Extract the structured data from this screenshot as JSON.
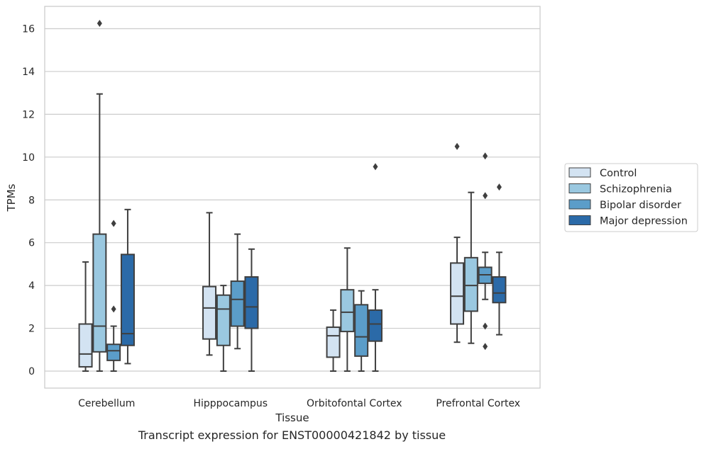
{
  "chart_data": {
    "type": "box",
    "caption": "Transcript expression for ENST00000421842 by tissue",
    "xlabel": "Tissue",
    "ylabel": "TPMs",
    "ylim": [
      -0.8,
      17
    ],
    "yticks": [
      0,
      2,
      4,
      6,
      8,
      10,
      12,
      14,
      16
    ],
    "grid": true,
    "legend_position": "right",
    "categories": [
      "Cerebellum",
      "Hipppocampus",
      "Orbitofontal Cortex",
      "Prefrontal Cortex"
    ],
    "series": [
      {
        "name": "Control",
        "color": "#d3e3f2",
        "boxes": [
          {
            "whislo": 0.0,
            "q1": 0.2,
            "med": 0.8,
            "q3": 2.2,
            "whishi": 5.1,
            "fliers": []
          },
          {
            "whislo": 0.75,
            "q1": 1.5,
            "med": 2.95,
            "q3": 3.95,
            "whishi": 7.4,
            "fliers": []
          },
          {
            "whislo": 0.0,
            "q1": 0.65,
            "med": 1.65,
            "q3": 2.05,
            "whishi": 2.85,
            "fliers": []
          },
          {
            "whislo": 1.35,
            "q1": 2.2,
            "med": 3.5,
            "q3": 5.05,
            "whishi": 6.25,
            "fliers": [
              10.5
            ]
          }
        ]
      },
      {
        "name": "Schizophrenia",
        "color": "#9ac8e0",
        "boxes": [
          {
            "whislo": 0.0,
            "q1": 0.9,
            "med": 2.1,
            "q3": 6.4,
            "whishi": 12.95,
            "fliers": [
              16.25
            ]
          },
          {
            "whislo": 0.0,
            "q1": 1.2,
            "med": 2.9,
            "q3": 3.55,
            "whishi": 4.0,
            "fliers": []
          },
          {
            "whislo": 0.0,
            "q1": 1.85,
            "med": 2.75,
            "q3": 3.8,
            "whishi": 5.75,
            "fliers": []
          },
          {
            "whislo": 1.3,
            "q1": 2.8,
            "med": 4.0,
            "q3": 5.3,
            "whishi": 8.35,
            "fliers": []
          }
        ]
      },
      {
        "name": "Bipolar disorder",
        "color": "#5b9dc9",
        "boxes": [
          {
            "whislo": 0.0,
            "q1": 0.5,
            "med": 0.95,
            "q3": 1.25,
            "whishi": 2.1,
            "fliers": [
              2.9,
              6.9
            ]
          },
          {
            "whislo": 1.05,
            "q1": 2.1,
            "med": 3.35,
            "q3": 4.2,
            "whishi": 6.4,
            "fliers": []
          },
          {
            "whislo": 0.0,
            "q1": 0.7,
            "med": 1.6,
            "q3": 3.1,
            "whishi": 3.75,
            "fliers": []
          },
          {
            "whislo": 3.35,
            "q1": 4.1,
            "med": 4.5,
            "q3": 4.85,
            "whishi": 5.55,
            "fliers": [
              1.15,
              2.1,
              8.2,
              10.05
            ]
          }
        ]
      },
      {
        "name": "Major depression",
        "color": "#2b6aa8",
        "boxes": [
          {
            "whislo": 0.35,
            "q1": 1.2,
            "med": 1.75,
            "q3": 5.45,
            "whishi": 7.55,
            "fliers": []
          },
          {
            "whislo": 0.0,
            "q1": 2.0,
            "med": 3.0,
            "q3": 4.4,
            "whishi": 5.7,
            "fliers": []
          },
          {
            "whislo": 0.0,
            "q1": 1.4,
            "med": 2.2,
            "q3": 2.85,
            "whishi": 3.8,
            "fliers": [
              9.55
            ]
          },
          {
            "whislo": 1.7,
            "q1": 3.2,
            "med": 3.65,
            "q3": 4.4,
            "whishi": 5.55,
            "fliers": [
              8.6
            ]
          }
        ]
      }
    ]
  }
}
